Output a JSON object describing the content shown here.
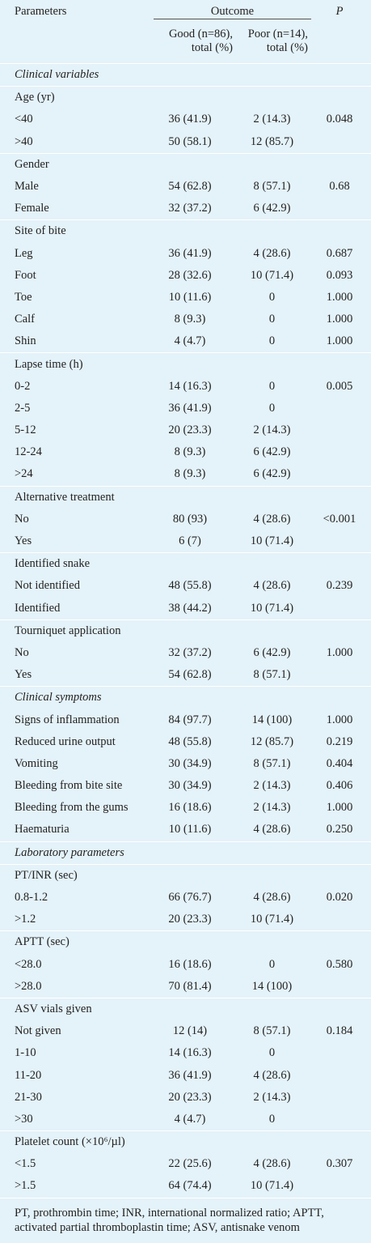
{
  "header": {
    "parameters": "Parameters",
    "outcome": "Outcome",
    "p": "P",
    "good": "Good (n=86), total (%)",
    "poor": "Poor (n=14), total (%)"
  },
  "sections": [
    {
      "title": "Clinical variables",
      "groups": [
        {
          "title": "Age (yr)",
          "rows": [
            [
              "<40",
              "36 (41.9)",
              "2 (14.3)",
              "0.048"
            ],
            [
              ">40",
              "50 (58.1)",
              "12 (85.7)"
            ]
          ]
        },
        {
          "title": "Gender",
          "rows": [
            [
              "Male",
              "54 (62.8)",
              "8 (57.1)",
              "0.68"
            ],
            [
              "Female",
              "32 (37.2)",
              "6 (42.9)"
            ]
          ]
        },
        {
          "title": "Site of bite",
          "rows": [
            [
              "Leg",
              "36 (41.9)",
              "4 (28.6)",
              "0.687"
            ],
            [
              "Foot",
              "28 (32.6)",
              "10 (71.4)",
              "0.093"
            ],
            [
              "Toe",
              "10 (11.6)",
              "0",
              "1.000"
            ],
            [
              "Calf",
              "8 (9.3)",
              "0",
              "1.000"
            ],
            [
              "Shin",
              "4 (4.7)",
              "0",
              "1.000"
            ]
          ]
        },
        {
          "title": "Lapse time (h)",
          "rows": [
            [
              "0-2",
              "14 (16.3)",
              "0",
              "0.005"
            ],
            [
              "2-5",
              "36 (41.9)",
              "0"
            ],
            [
              "5-12",
              "20 (23.3)",
              "2 (14.3)"
            ],
            [
              "12-24",
              "8 (9.3)",
              "6 (42.9)"
            ],
            [
              ">24",
              "8 (9.3)",
              "6 (42.9)"
            ]
          ]
        },
        {
          "title": "Alternative treatment",
          "rows": [
            [
              "No",
              "80 (93)",
              "4 (28.6)",
              "<0.001"
            ],
            [
              "Yes",
              "6 (7)",
              "10 (71.4)"
            ]
          ]
        },
        {
          "title": "Identified snake",
          "rows": [
            [
              "Not identified",
              "48 (55.8)",
              "4 (28.6)",
              "0.239"
            ],
            [
              "Identified",
              "38 (44.2)",
              "10 (71.4)"
            ]
          ]
        },
        {
          "title": "Tourniquet application",
          "rows": [
            [
              "No",
              "32 (37.2)",
              "6 (42.9)",
              "1.000"
            ],
            [
              "Yes",
              "54 (62.8)",
              "8 (57.1)"
            ]
          ]
        }
      ]
    },
    {
      "title": "Clinical symptoms",
      "rows": [
        [
          "Signs of inflammation",
          "84 (97.7)",
          "14 (100)",
          "1.000"
        ],
        [
          "Reduced urine output",
          "48 (55.8)",
          "12 (85.7)",
          "0.219"
        ],
        [
          "Vomiting",
          "30 (34.9)",
          "8 (57.1)",
          "0.404"
        ],
        [
          "Bleeding from bite site",
          "30 (34.9)",
          "2 (14.3)",
          "0.406"
        ],
        [
          "Bleeding from the gums",
          "16 (18.6)",
          "2 (14.3)",
          "1.000"
        ],
        [
          "Haematuria",
          "10 (11.6)",
          "4 (28.6)",
          "0.250"
        ]
      ]
    },
    {
      "title": "Laboratory parameters",
      "groups": [
        {
          "title": "PT/INR (sec)",
          "rows": [
            [
              "0.8-1.2",
              "66 (76.7)",
              "4 (28.6)",
              "0.020"
            ],
            [
              ">1.2",
              "20 (23.3)",
              "10 (71.4)"
            ]
          ]
        },
        {
          "title": "APTT (sec)",
          "rows": [
            [
              "<28.0",
              "16 (18.6)",
              "0",
              "0.580"
            ],
            [
              ">28.0",
              "70 (81.4)",
              "14 (100)"
            ]
          ]
        },
        {
          "title": "ASV vials given",
          "rows": [
            [
              "Not given",
              "12 (14)",
              "8 (57.1)",
              "0.184"
            ],
            [
              "1-10",
              "14 (16.3)",
              "0"
            ],
            [
              "11-20",
              "36 (41.9)",
              "4 (28.6)"
            ],
            [
              "21-30",
              "20 (23.3)",
              "2 (14.3)"
            ],
            [
              ">30",
              "4 (4.7)",
              "0"
            ]
          ]
        },
        {
          "title": "Platelet count (×10⁶/µl)",
          "rows": [
            [
              "<1.5",
              "22 (25.6)",
              "4 (28.6)",
              "0.307"
            ],
            [
              ">1.5",
              "64 (74.4)",
              "10 (71.4)"
            ]
          ]
        }
      ]
    }
  ],
  "footnote": "PT, prothrombin time; INR, international normalized ratio; APTT, activated partial thromboplastin time; ASV, antisnake venom"
}
